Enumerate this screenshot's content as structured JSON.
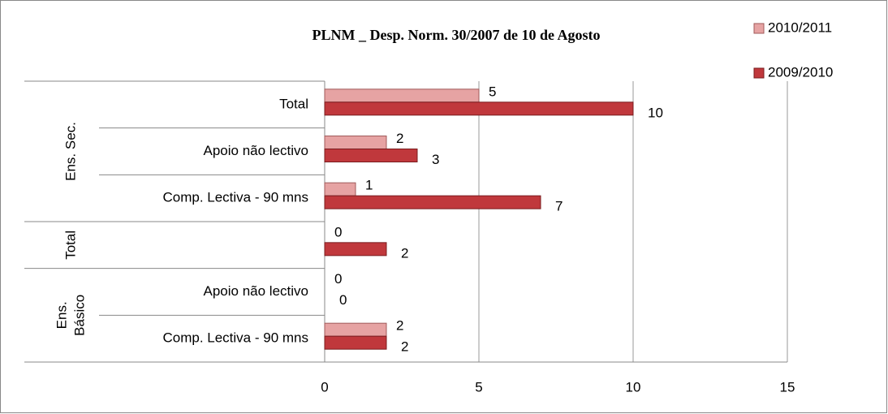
{
  "chart_data": {
    "type": "bar",
    "orientation": "horizontal",
    "title": "PLNM _ Desp. Norm. 30/2007 de 10 de Agosto",
    "groups": [
      {
        "label": [
          "Ens. Sec."
        ],
        "categories": [
          "Total",
          "Apoio não lectivo",
          "Comp. Lectiva - 90 mns"
        ]
      },
      {
        "label": [
          "Total"
        ],
        "categories": [
          null
        ]
      },
      {
        "label": [
          "Ens.",
          "Básico"
        ],
        "categories": [
          "Apoio não lectivo",
          "Comp. Lectiva - 90 mns"
        ]
      }
    ],
    "series": [
      {
        "name": "2010/2011",
        "color": "#e6a3a3",
        "values": [
          5,
          2,
          1,
          0,
          0,
          2
        ]
      },
      {
        "name": "2009/2010",
        "color": "#c0383c",
        "values": [
          10,
          3,
          7,
          2,
          0,
          2
        ]
      }
    ],
    "xlim": [
      0,
      15
    ],
    "xticks": [
      0,
      5,
      10,
      15
    ],
    "grid": true,
    "legend": "top-right"
  }
}
